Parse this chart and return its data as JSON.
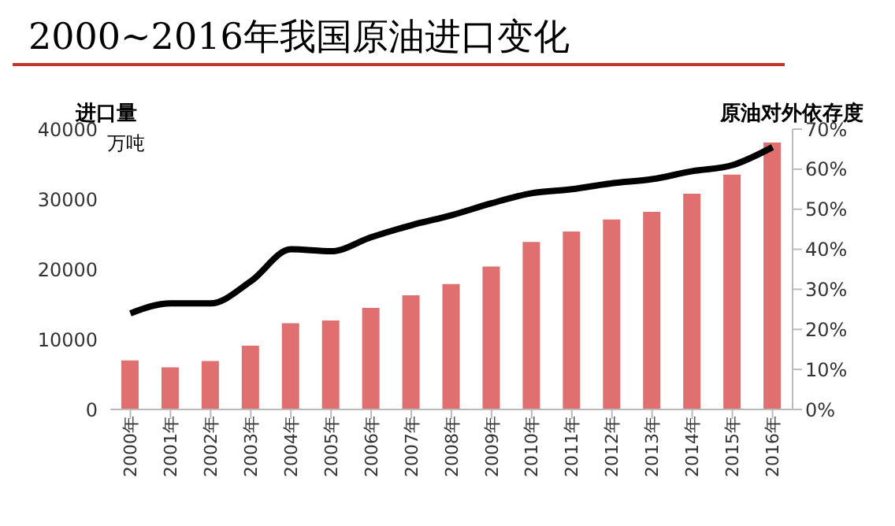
{
  "chart_data": {
    "type": "bar",
    "title": "2000~2016年我国原油进口变化",
    "ylabel": "进口量",
    "y2label": "原油对外依存度",
    "annotations": [
      "万吨"
    ],
    "categories": [
      "2000年",
      "2001年",
      "2002年",
      "2003年",
      "2004年",
      "2005年",
      "2006年",
      "2007年",
      "2008年",
      "2009年",
      "2010年",
      "2011年",
      "2012年",
      "2013年",
      "2014年",
      "2015年",
      "2016年"
    ],
    "series": [
      {
        "color": "#e07070",
        "values": [
          7000,
          6000,
          6900,
          9100,
          12300,
          12700,
          14500,
          16300,
          17900,
          20400,
          23900,
          25400,
          27100,
          28200,
          30800,
          33500,
          38100
        ]
      },
      {
        "type": "line",
        "axis": "y2",
        "color": "#000000",
        "marker": "none",
        "line_style": "solid",
        "values": [
          24,
          26.5,
          26.5,
          32,
          40,
          39.5,
          43,
          46,
          48.5,
          51.5,
          54,
          55,
          56.5,
          57.5,
          59.5,
          61,
          65.5
        ]
      }
    ],
    "ylim": [
      0,
      40000
    ],
    "yticks": [
      0,
      10000,
      20000,
      30000,
      40000
    ],
    "y2lim": [
      0,
      70
    ],
    "y2ticks": [
      {
        "value": 0,
        "label": "0%"
      },
      {
        "value": 10,
        "label": "10%"
      },
      {
        "value": 20,
        "label": "20%"
      },
      {
        "value": 30,
        "label": "30%"
      },
      {
        "value": 40,
        "label": "40%"
      },
      {
        "value": 50,
        "label": "50%"
      },
      {
        "value": 60,
        "label": "60%"
      },
      {
        "value": 70,
        "label": "70%"
      }
    ],
    "grid": false,
    "legend": false
  }
}
